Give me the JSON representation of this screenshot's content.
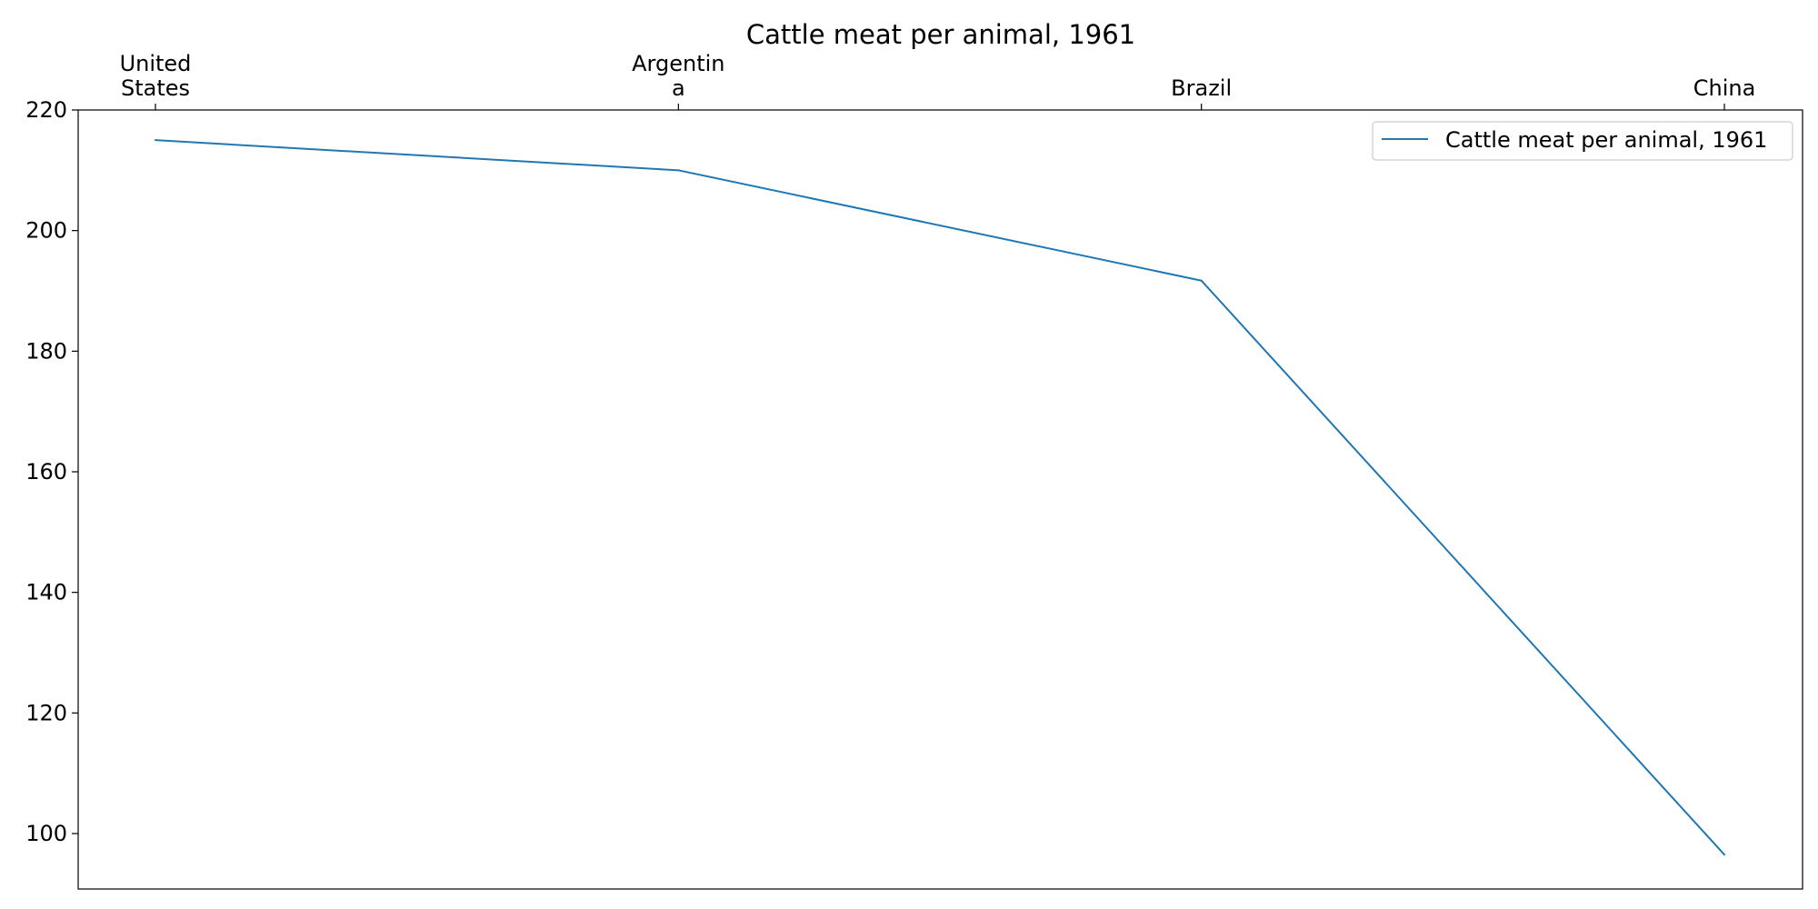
{
  "chart_data": {
    "type": "line",
    "title": "Cattle meat per animal, 1961",
    "xlabel": "",
    "ylabel": "",
    "categories": [
      "United States",
      "Argentina",
      "Brazil",
      "China"
    ],
    "category_tick_lines": [
      [
        "United",
        "States"
      ],
      [
        "Argentin",
        "a"
      ],
      [
        "Brazil"
      ],
      [
        "China"
      ]
    ],
    "x_axis_position": "top",
    "series": [
      {
        "name": "Cattle meat per animal, 1961",
        "values": [
          215,
          210,
          191.7,
          96.5
        ],
        "color": "#1f77b4"
      }
    ],
    "ylim": [
      90,
      220
    ],
    "yticks": [
      100,
      120,
      140,
      160,
      180,
      200,
      220
    ],
    "grid": false,
    "legend_position": "top-right"
  }
}
